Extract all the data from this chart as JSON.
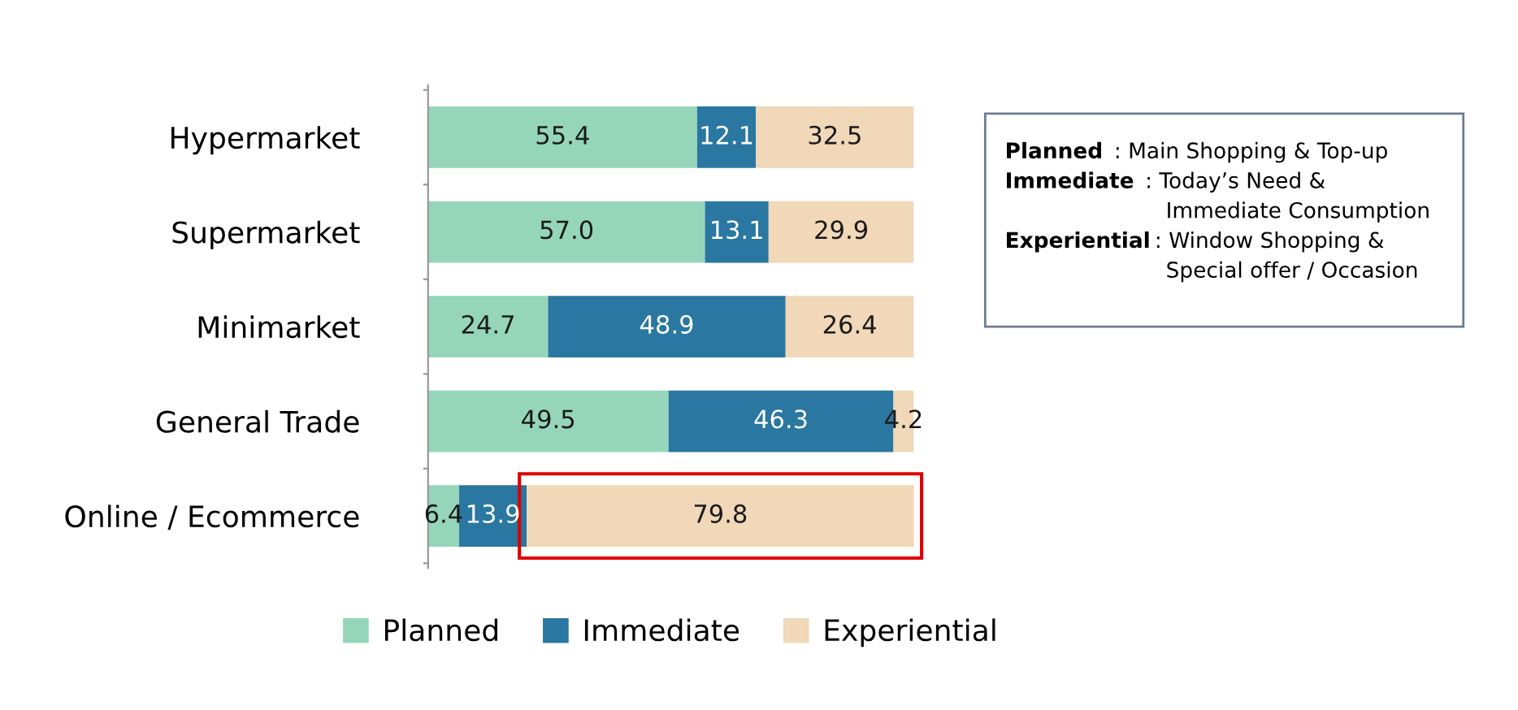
{
  "chart_data": {
    "type": "bar",
    "orientation": "horizontal",
    "stacked": true,
    "legend": "bottom",
    "grid": false,
    "tick_labels": "y",
    "categories": [
      "Hypermarket",
      "Supermarket",
      "Minimarket",
      "General Trade",
      "Online / Ecommerce"
    ],
    "xlim": [
      0,
      100
    ],
    "series": [
      {
        "name": "Planned",
        "color": "#95d6bb",
        "values": [
          55.4,
          57.0,
          24.7,
          49.5,
          6.4
        ],
        "value_labels": [
          "55.4",
          "57.0",
          "24.7",
          "49.5",
          "6.4"
        ]
      },
      {
        "name": "Immediate",
        "color": "#2a77a1",
        "values": [
          12.1,
          13.1,
          48.9,
          46.3,
          13.9
        ],
        "value_labels": [
          "12.1",
          "13.1",
          "48.9",
          "46.3",
          "13.9"
        ]
      },
      {
        "name": "Experiential",
        "color": "#f0d8b8",
        "values": [
          32.5,
          29.9,
          26.4,
          4.2,
          79.8
        ],
        "value_labels": [
          "32.5",
          "29.9",
          "26.4",
          "4.2",
          "79.8"
        ]
      }
    ],
    "annotations": [
      "Planned : Main Shopping & Top-up",
      "Immediate : Today’s Need & Immediate Consumption",
      "Experiential: Window Shopping & Special offer / Occasion"
    ]
  }
}
